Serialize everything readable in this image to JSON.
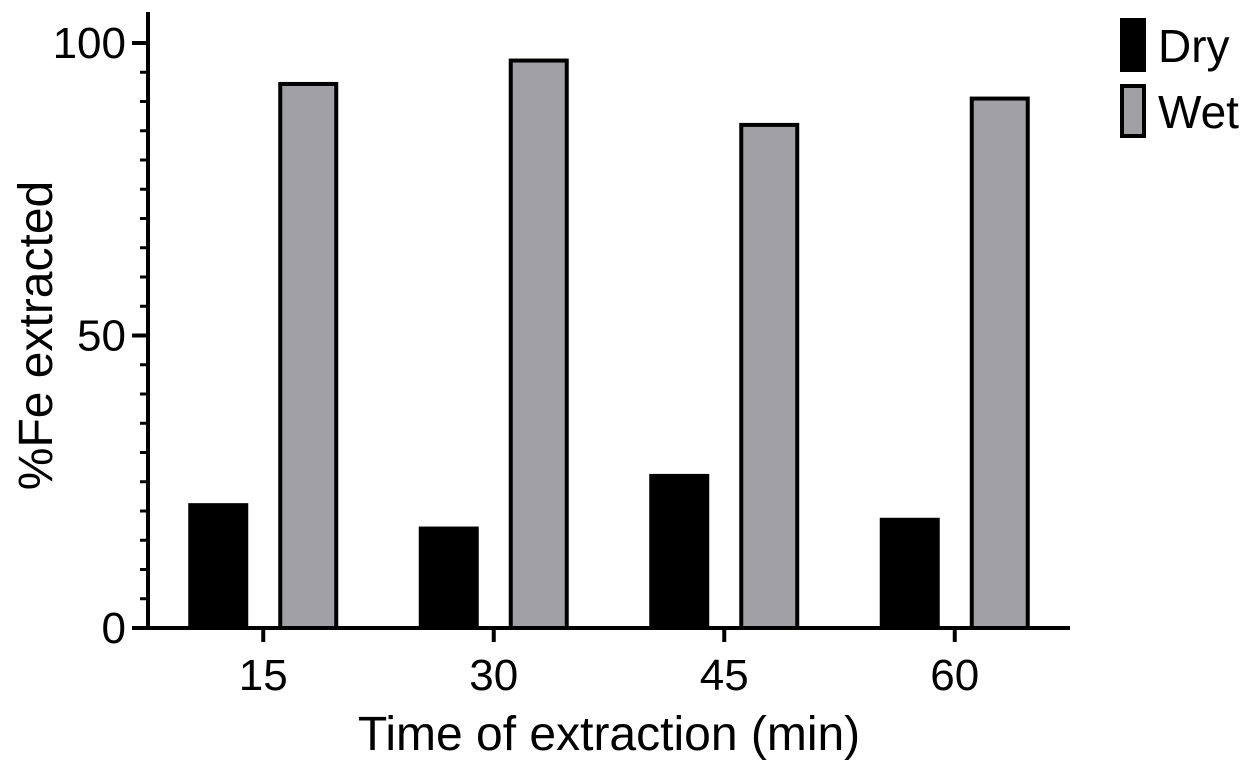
{
  "chart_data": {
    "type": "bar",
    "xlabel": "Time of extraction (min)",
    "ylabel": "%Fe extracted",
    "categories": [
      "15",
      "30",
      "45",
      "60"
    ],
    "series": [
      {
        "name": "Dry",
        "values": [
          21,
          17,
          26,
          18.5
        ],
        "color": "#000000"
      },
      {
        "name": "Wet",
        "values": [
          93,
          97,
          86,
          90.5
        ],
        "color": "#a1a1a5"
      }
    ],
    "ylim": [
      0,
      100
    ],
    "yticks": [
      "0",
      "50",
      "100"
    ],
    "grid": false,
    "legend": "top-right"
  }
}
